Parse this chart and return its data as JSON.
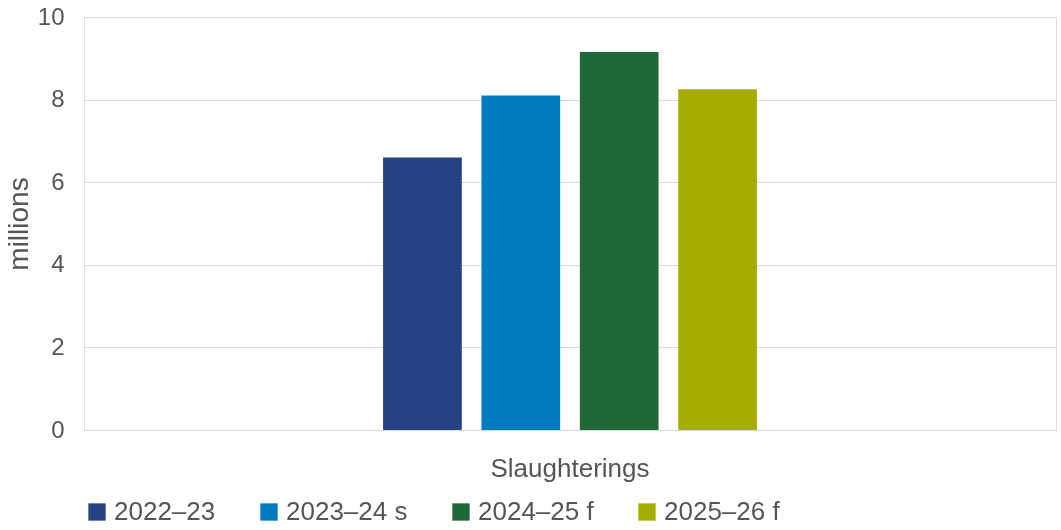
{
  "chart_data": {
    "type": "bar",
    "ylabel": "millions",
    "categories": [
      "Slaughterings"
    ],
    "series": [
      {
        "name": "2022–23",
        "color": "#264285",
        "values": [
          6.6
        ]
      },
      {
        "name": "2023–24 s",
        "color": "#037bc1",
        "values": [
          8.1
        ]
      },
      {
        "name": "2024–25 f",
        "color": "#206836",
        "values": [
          9.15
        ]
      },
      {
        "name": "2025–26 f",
        "color": "#a5ae00",
        "values": [
          8.25
        ]
      }
    ],
    "ylim": [
      0,
      10
    ],
    "yticks": [
      0,
      2,
      4,
      6,
      8,
      10
    ],
    "grid": "y",
    "legend": "bottom"
  }
}
